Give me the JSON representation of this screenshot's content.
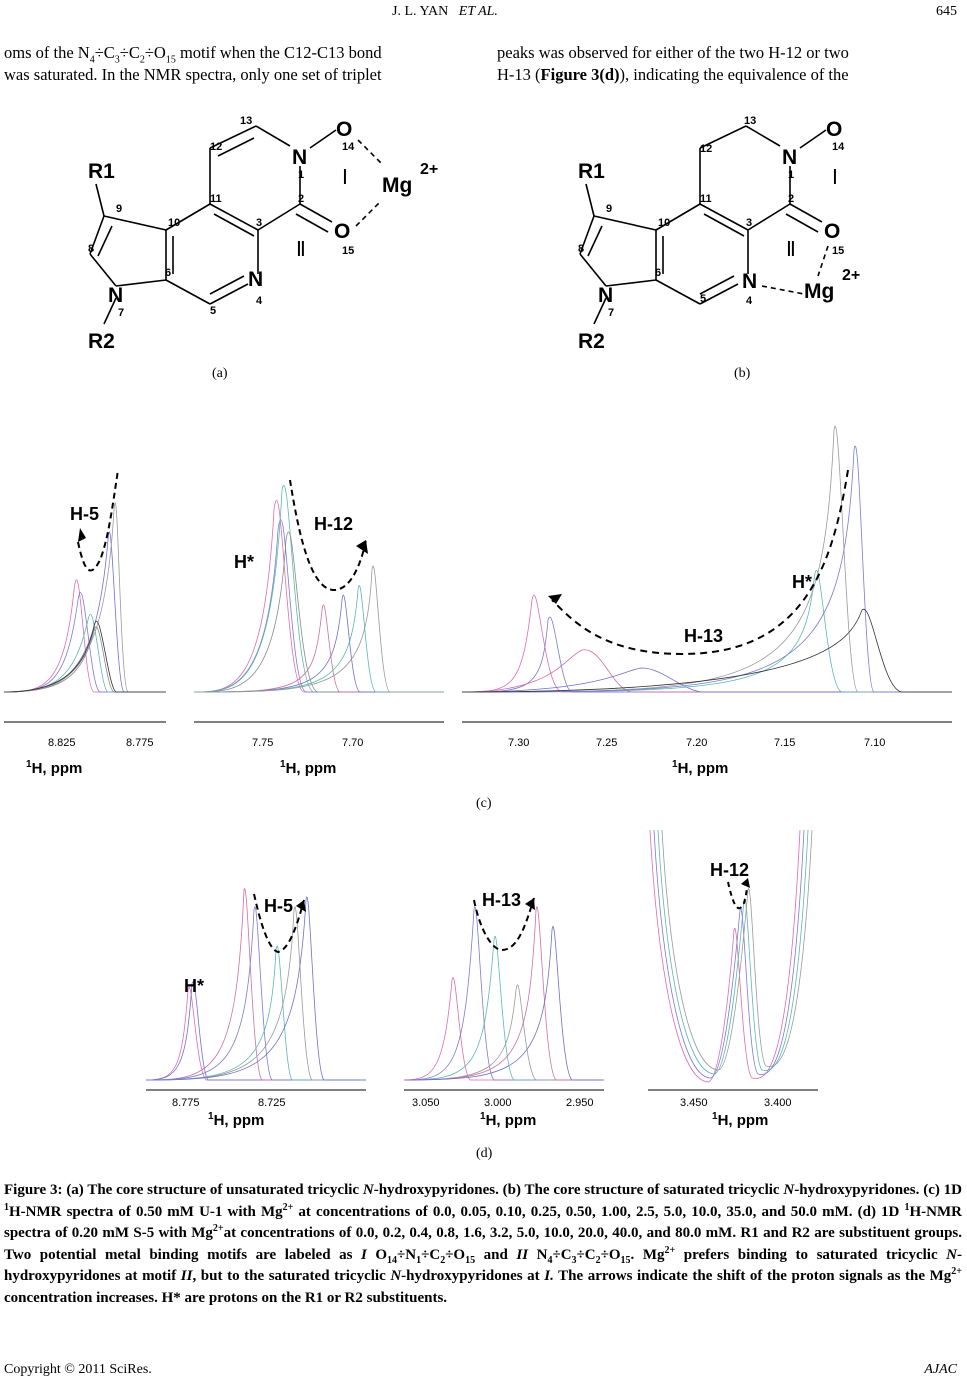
{
  "header": {
    "author": "J. L. YAN",
    "et_al": "ET AL.",
    "page": "645"
  },
  "body_left": {
    "l1_pre": "oms of the N",
    "l1_s1": "4",
    "l1_m1": "÷C",
    "l1_s2": "3",
    "l1_m2": "÷C",
    "l1_s3": "2",
    "l1_m3": "÷O",
    "l1_s4": "15",
    "l1_post": " motif when the C12-C13 bond",
    "l2": "was saturated. In the NMR spectra, only one set of triplet"
  },
  "body_right": {
    "l1": "peaks was observed for either of the two H-12 or two",
    "l2_pre": "H-13 (",
    "l2_bold": "Figure 3(d)",
    "l2_post": "), indicating the equivalence of the"
  },
  "structure_a": {
    "label": "(a)",
    "atoms": [
      "R1",
      "R2",
      "N",
      "N",
      "N",
      "O",
      "O",
      "Mg"
    ],
    "charge": "2+",
    "motif_1": "Ⅰ",
    "motif_2": "Ⅱ",
    "numbers": [
      "1",
      "2",
      "3",
      "4",
      "5",
      "6",
      "7",
      "8",
      "9",
      "10",
      "11",
      "12",
      "13",
      "14",
      "15"
    ]
  },
  "structure_b": {
    "label": "(b)",
    "atoms": [
      "R1",
      "R2",
      "N",
      "N",
      "N",
      "O",
      "O",
      "Mg"
    ],
    "charge": "2+",
    "motif_1": "Ⅰ",
    "motif_2": "Ⅱ",
    "numbers": [
      "1",
      "2",
      "3",
      "4",
      "5",
      "6",
      "7",
      "8",
      "9",
      "10",
      "11",
      "12",
      "13",
      "14",
      "15"
    ]
  },
  "panel_c": {
    "label": "(c)",
    "spectra": [
      {
        "peak_label": "H-5",
        "ticks": [
          "8.825",
          "8.775"
        ],
        "axis_label": "1H, ppm",
        "axis_sup": "1",
        "axis_text": "H, ppm"
      },
      {
        "peak_labels": [
          "H*",
          "H-12"
        ],
        "ticks": [
          "7.75",
          "7.70"
        ],
        "axis_sup": "1",
        "axis_text": "H, ppm"
      },
      {
        "peak_labels": [
          "H*",
          "H-13"
        ],
        "ticks": [
          "7.30",
          "7.25",
          "7.20",
          "7.15",
          "7.10"
        ],
        "axis_sup": "1",
        "axis_text": "H, ppm"
      }
    ]
  },
  "panel_d": {
    "label": "(d)",
    "spectra": [
      {
        "peak_labels": [
          "H*",
          "H-5"
        ],
        "ticks": [
          "8.775",
          "8.725"
        ],
        "axis_sup": "1",
        "axis_text": "H, ppm"
      },
      {
        "peak_label": "H-13",
        "ticks": [
          "3.050",
          "3.000",
          "2.950"
        ],
        "axis_sup": "1",
        "axis_text": "H, ppm"
      },
      {
        "peak_label": "H-12",
        "ticks": [
          "3.450",
          "3.400"
        ],
        "axis_sup": "1",
        "axis_text": "H, ppm"
      }
    ]
  },
  "caption": {
    "a1": "Figure 3: (a) The core structure of unsaturated tricyclic ",
    "a2": "N",
    "a3": "-hydroxypyridones. (b) The core structure of saturated tricyclic ",
    "a4": "N",
    "a5": "-hydroxypyridones. (c) 1D ",
    "s1": "1",
    "a6": "H-NMR spectra of 0.50 mM U-1 with Mg",
    "s2": "2+",
    "a7": " at concentrations of 0.0, 0.05, 0.10, 0.25, 0.50, 1.00, 2.5, 5.0, 10.0, 35.0, and 50.0 mM. (d) 1D ",
    "s3": "1",
    "a8": "H-NMR spectra of 0.20 mM S-5 with Mg",
    "s4": "2+",
    "a9": "at concentrations of 0.0, 0.2, 0.4, 0.8, 1.6, 3.2, 5.0, 10.0, 20.0, 40.0, and 80.0 mM. R1 and R2 are substituent groups. Two potential metal binding motifs are labeled as ",
    "i1": "I",
    "a10": " O",
    "b1": "14",
    "a11": "÷N",
    "b2": "1",
    "a12": "÷C",
    "b3": "2",
    "a13": "÷O",
    "b4": "15",
    "a14": " and ",
    "i2": "II",
    "a15": " N",
    "b5": "4",
    "a16": "÷C",
    "b6": "3",
    "a17": "÷C",
    "b7": "2",
    "a18": "÷O",
    "b8": "15",
    "a19": ". Mg",
    "s5": "2+",
    "a20": " prefers binding to saturated tricyclic ",
    "i3": "N",
    "a21": "-hydroxypyridones at motif ",
    "i4": "II",
    "a22": ", but to the saturated tricyclic ",
    "i5": "N",
    "a23": "-hydroxypyridones at ",
    "i6": "I.",
    "a24": " The arrows indicate the shift of the proton signals as the Mg",
    "s6": "2+",
    "a25": " concentration increases. H* are protons on the R1 or R2 substituents."
  },
  "footer": {
    "copyright": "Copyright © 2011 SciRes.",
    "journal": "AJAC"
  }
}
